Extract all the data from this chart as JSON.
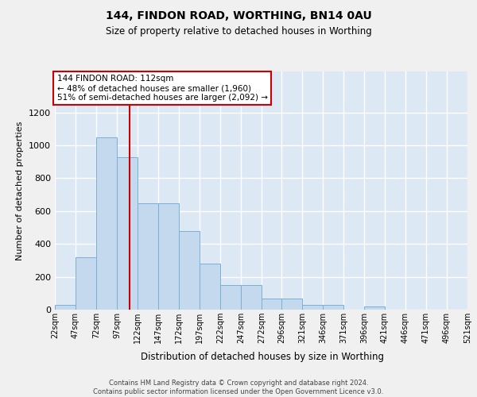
{
  "title": "144, FINDON ROAD, WORTHING, BN14 0AU",
  "subtitle": "Size of property relative to detached houses in Worthing",
  "xlabel": "Distribution of detached houses by size in Worthing",
  "ylabel": "Number of detached properties",
  "bar_color": "#c5d9ee",
  "bar_edge_color": "#7aafd4",
  "background_color": "#dde8f5",
  "grid_color": "#ffffff",
  "annotation_line1": "144 FINDON ROAD: 112sqm",
  "annotation_line2": "← 48% of detached houses are smaller (1,960)",
  "annotation_line3": "51% of semi-detached houses are larger (2,092) →",
  "vline_x": 112,
  "vline_color": "#cc0000",
  "footer": "Contains HM Land Registry data © Crown copyright and database right 2024.\nContains public sector information licensed under the Open Government Licence v3.0.",
  "bin_edges": [
    22,
    47,
    72,
    97,
    122,
    147,
    172,
    197,
    222,
    247,
    272,
    296,
    321,
    346,
    371,
    396,
    421,
    446,
    471,
    496,
    521
  ],
  "bin_labels": [
    "22sqm",
    "47sqm",
    "72sqm",
    "97sqm",
    "122sqm",
    "147sqm",
    "172sqm",
    "197sqm",
    "222sqm",
    "247sqm",
    "272sqm",
    "296sqm",
    "321sqm",
    "346sqm",
    "371sqm",
    "396sqm",
    "421sqm",
    "446sqm",
    "471sqm",
    "496sqm",
    "521sqm"
  ],
  "counts": [
    30,
    320,
    1050,
    930,
    650,
    650,
    480,
    280,
    150,
    150,
    70,
    70,
    30,
    30,
    0,
    20,
    0,
    0,
    0,
    0
  ],
  "yticks": [
    0,
    200,
    400,
    600,
    800,
    1000,
    1200
  ],
  "ylim": [
    0,
    1450
  ],
  "xlim_min": 22,
  "xlim_max": 521,
  "bin_width": 25,
  "fig_bg": "#f0f0f0"
}
